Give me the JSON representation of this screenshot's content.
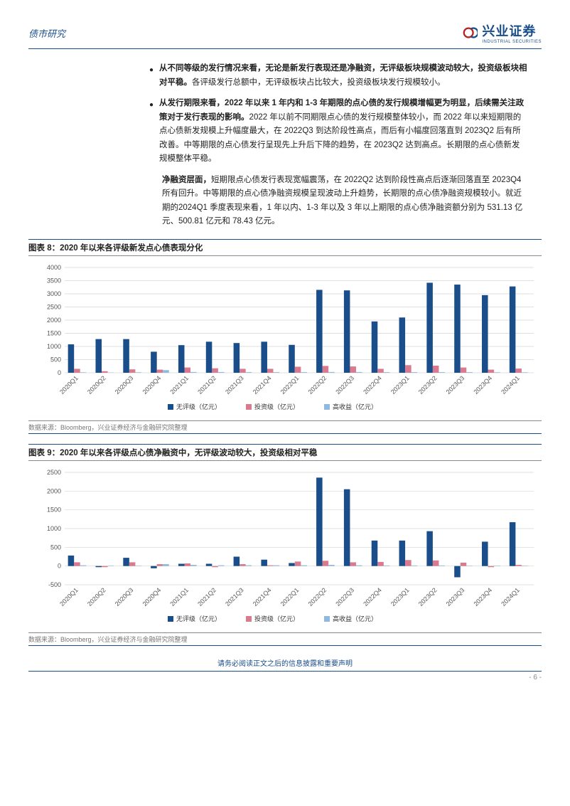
{
  "header": {
    "left": "债市研究",
    "brand": "兴业证券",
    "brand_sub": "INDUSTRIAL SECURITIES"
  },
  "text": {
    "b1_bold": "从不同等级的发行情况来看，无论是新发行表现还是净融资，无评级板块规模波动较大，投资级板块相对平稳。",
    "b1_rest": "各评级发行总额中，无评级板块占比较大，投资级板块发行规模较小。",
    "b2_bold": "从发行期限来看，2022 年以来 1 年内和 1-3 年期限的点心债的发行规模增幅更为明显，后续需关注政策对于发行表现的影响。",
    "b2_rest": "2022 年以前不同期限点心债的发行规模整体较小，而 2022 年以来短期限的点心债新发规模上升幅度最大，在 2022Q3 到达阶段性高点，而后有小幅度回落直到 2023Q2 后有所改善。中等期限的点心债发行呈现先上升后下降的趋势，在 2023Q2 达到高点。长期限的点心债新发规模整体平稳。",
    "p3_bold": "净融资层面，",
    "p3_rest": "短期限点心债发行表现宽幅震荡，在 2022Q2 达到阶段性高点后逐渐回落直至 2023Q4 所有回升。中等期限的点心债净融资规模呈现波动上升趋势，长期限的点心债净融资规模较小。就近期的2024Q1 季度表现来看，1 年以内、1-3 年以及 3 年以上期限的点心债净融资额分别为 531.13 亿元、500.81 亿元和 78.43 亿元。"
  },
  "chart8": {
    "title": "图表 8：2020 年以来各评级新发点心债表现分化",
    "type": "bar",
    "categories": [
      "2020Q1",
      "2020Q2",
      "2020Q3",
      "2020Q4",
      "2021Q1",
      "2021Q2",
      "2021Q3",
      "2021Q4",
      "2022Q1",
      "2022Q2",
      "2022Q3",
      "2022Q4",
      "2023Q1",
      "2023Q2",
      "2023Q3",
      "2023Q4",
      "2024Q1"
    ],
    "series": [
      {
        "name": "无评级（亿元）",
        "color": "#1a4e8a",
        "values": [
          1080,
          1280,
          1280,
          800,
          1050,
          1180,
          1130,
          1180,
          1060,
          3150,
          3130,
          1950,
          2100,
          3420,
          3350,
          2950,
          3280
        ]
      },
      {
        "name": "投资级（亿元）",
        "color": "#d97b8e",
        "values": [
          150,
          60,
          130,
          120,
          200,
          170,
          150,
          150,
          230,
          260,
          240,
          150,
          290,
          270,
          200,
          120,
          160
        ]
      },
      {
        "name": "高收益（亿元）",
        "color": "#8fb9de",
        "values": [
          20,
          10,
          20,
          100,
          30,
          30,
          25,
          25,
          25,
          30,
          30,
          25,
          25,
          25,
          25,
          20,
          20
        ]
      }
    ],
    "ylim": [
      0,
      4000
    ],
    "ytick_step": 500,
    "grid_color": "#d5d5d5",
    "background_color": "#ffffff",
    "label_fontsize": 9,
    "source": "数据来源：Bloomberg，兴业证券经济与金融研究院整理"
  },
  "chart9": {
    "title": "图表 9：2020 年以来各评级点心债净融资中，无评级波动较大，投资级相对平稳",
    "type": "bar",
    "categories": [
      "2020Q1",
      "2020Q2",
      "2020Q3",
      "2020Q4",
      "2021Q1",
      "2021Q2",
      "2021Q3",
      "2021Q4",
      "2022Q1",
      "2022Q2",
      "2022Q3",
      "2022Q4",
      "2023Q1",
      "2023Q2",
      "2023Q3",
      "2023Q4",
      "2024Q1"
    ],
    "series": [
      {
        "name": "无评级（亿元）",
        "color": "#1a4e8a",
        "values": [
          280,
          -30,
          220,
          -60,
          60,
          60,
          250,
          170,
          80,
          2360,
          2050,
          680,
          680,
          930,
          -300,
          650,
          1170
        ]
      },
      {
        "name": "投资级（亿元）",
        "color": "#d97b8e",
        "values": [
          100,
          -30,
          100,
          50,
          70,
          -30,
          50,
          20,
          120,
          140,
          100,
          110,
          160,
          150,
          90,
          -30,
          30
        ]
      },
      {
        "name": "高收益（亿元）",
        "color": "#8fb9de",
        "values": [
          20,
          10,
          10,
          50,
          30,
          20,
          20,
          20,
          20,
          30,
          20,
          15,
          15,
          15,
          10,
          10,
          10
        ]
      }
    ],
    "ylim": [
      -500,
      2500
    ],
    "ytick_step": 500,
    "grid_color": "#d5d5d5",
    "background_color": "#ffffff",
    "label_fontsize": 9,
    "source": "数据来源：Bloomberg，兴业证券经济与金融研究院整理"
  },
  "footer": "请务必阅读正文之后的信息披露和重要声明",
  "page_number": "- 6 -"
}
